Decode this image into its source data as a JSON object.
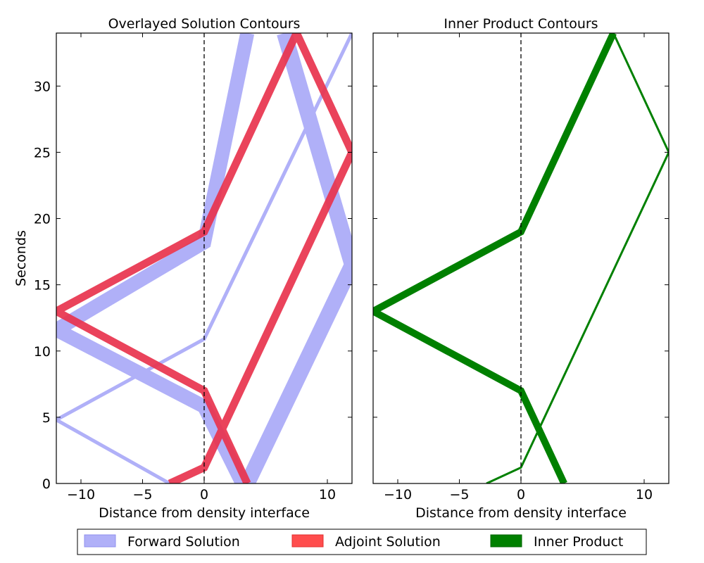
{
  "figure": {
    "legend": [
      {
        "label": "Forward Solution",
        "color": "#b0b0f8"
      },
      {
        "label": "Adjoint Solution",
        "color": "#ff4d4d"
      },
      {
        "label": "Inner Product",
        "color": "#008000"
      }
    ],
    "legend_placement": "bottom-center"
  },
  "chart_data": [
    {
      "type": "line",
      "title": "Overlayed Solution Contours",
      "xlabel": "Distance from density interface",
      "ylabel": "Seconds",
      "xlim": [
        -12,
        12
      ],
      "ylim": [
        0,
        34
      ],
      "xticks": [
        -10,
        -5,
        0,
        10
      ],
      "xtick_labels": [
        "−10",
        "−5",
        "0",
        "10"
      ],
      "yticks": [
        0,
        5,
        10,
        15,
        20,
        25,
        30
      ],
      "ytick_labels": [
        "0",
        "5",
        "10",
        "15",
        "20",
        "25",
        "30"
      ],
      "annotations": [
        {
          "type": "vline",
          "x": 0,
          "style": "dashed"
        }
      ],
      "grid": false,
      "series": [
        {
          "name": "Forward Solution",
          "color": "#b0b0f8",
          "width": 20,
          "points": [
            [
              3.1,
              0
            ],
            [
              0,
              5.8
            ],
            [
              -12,
              11.6
            ],
            [
              0,
              18.2
            ],
            [
              3.5,
              34
            ]
          ]
        },
        {
          "name": "Forward Solution",
          "color": "#b0b0f8",
          "width": 22,
          "points": [
            [
              3.5,
              0
            ],
            [
              12,
              16.5
            ],
            [
              6.5,
              34
            ]
          ]
        },
        {
          "name": "Forward Solution",
          "color": "#b0b0f8",
          "width": 5,
          "points": [
            [
              -2.8,
              0
            ],
            [
              -12,
              4.8
            ],
            [
              0,
              10.9
            ],
            [
              12,
              34
            ]
          ]
        },
        {
          "name": "Adjoint Solution",
          "color": "#e8334d",
          "width": 11,
          "points": [
            [
              3.5,
              0
            ],
            [
              0,
              7.0
            ],
            [
              -12,
              13.0
            ],
            [
              0,
              19.0
            ],
            [
              7.5,
              34
            ],
            [
              12,
              25.0
            ],
            [
              0,
              1.2
            ],
            [
              -2.8,
              0
            ]
          ]
        }
      ]
    },
    {
      "type": "line",
      "title": "Inner Product Contours",
      "xlabel": "Distance from density interface",
      "ylabel": "",
      "xlim": [
        -12,
        12
      ],
      "ylim": [
        0,
        34
      ],
      "xticks": [
        -10,
        -5,
        0,
        10
      ],
      "xtick_labels": [
        "−10",
        "−5",
        "0",
        "10"
      ],
      "yticks": [
        0,
        5,
        10,
        15,
        20,
        25,
        30
      ],
      "ytick_labels": [],
      "annotations": [
        {
          "type": "vline",
          "x": 0,
          "style": "dashed"
        }
      ],
      "grid": false,
      "series": [
        {
          "name": "Inner Product",
          "color": "#008000",
          "width": 10,
          "points": [
            [
              3.5,
              0
            ],
            [
              0,
              7.0
            ],
            [
              -12,
              13.0
            ],
            [
              0,
              19.0
            ],
            [
              7.5,
              34
            ]
          ]
        },
        {
          "name": "Inner Product",
          "color": "#008000",
          "width": 3,
          "points": [
            [
              7.5,
              34
            ],
            [
              12,
              25.0
            ],
            [
              0,
              1.2
            ],
            [
              -2.8,
              0
            ]
          ]
        }
      ]
    }
  ]
}
